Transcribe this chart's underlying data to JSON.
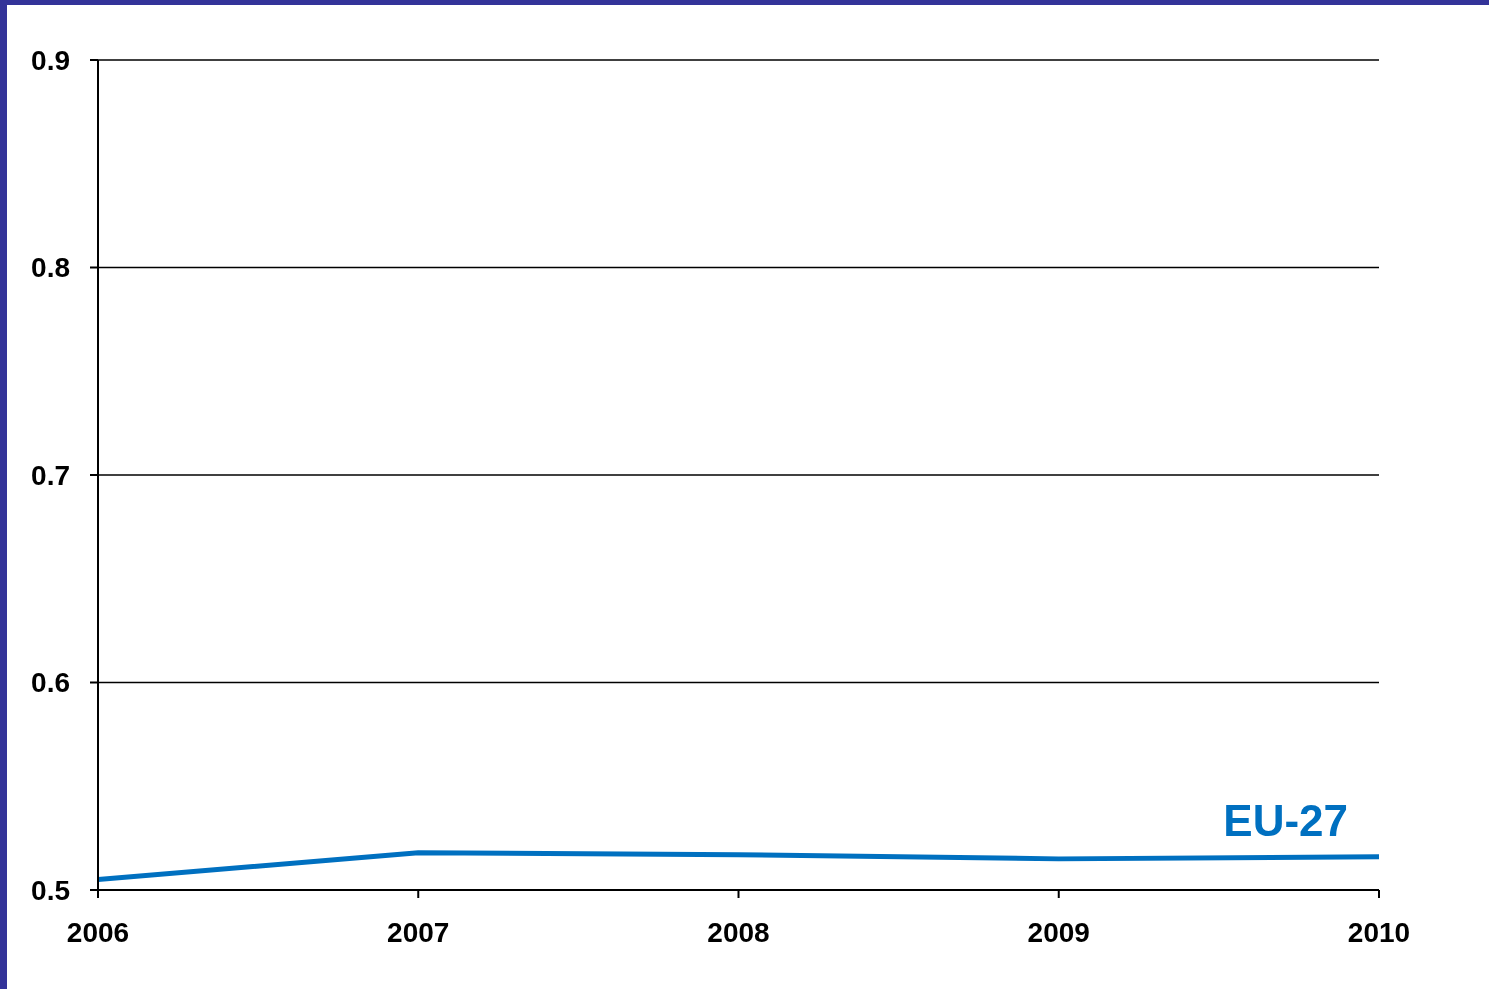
{
  "chart_data": {
    "type": "line",
    "x": [
      2006,
      2007,
      2008,
      2009,
      2010
    ],
    "series": [
      {
        "name": "EU-27",
        "color": "#0070c0",
        "values": [
          0.505,
          0.518,
          0.517,
          0.515,
          0.516
        ]
      }
    ],
    "xlim": [
      2006,
      2010
    ],
    "xticks": [
      2006,
      2007,
      2008,
      2009,
      2010
    ],
    "ylim": [
      0.5,
      0.9
    ],
    "yticks": [
      0.5,
      0.6,
      0.7,
      0.8,
      0.9
    ],
    "grid": "y"
  }
}
